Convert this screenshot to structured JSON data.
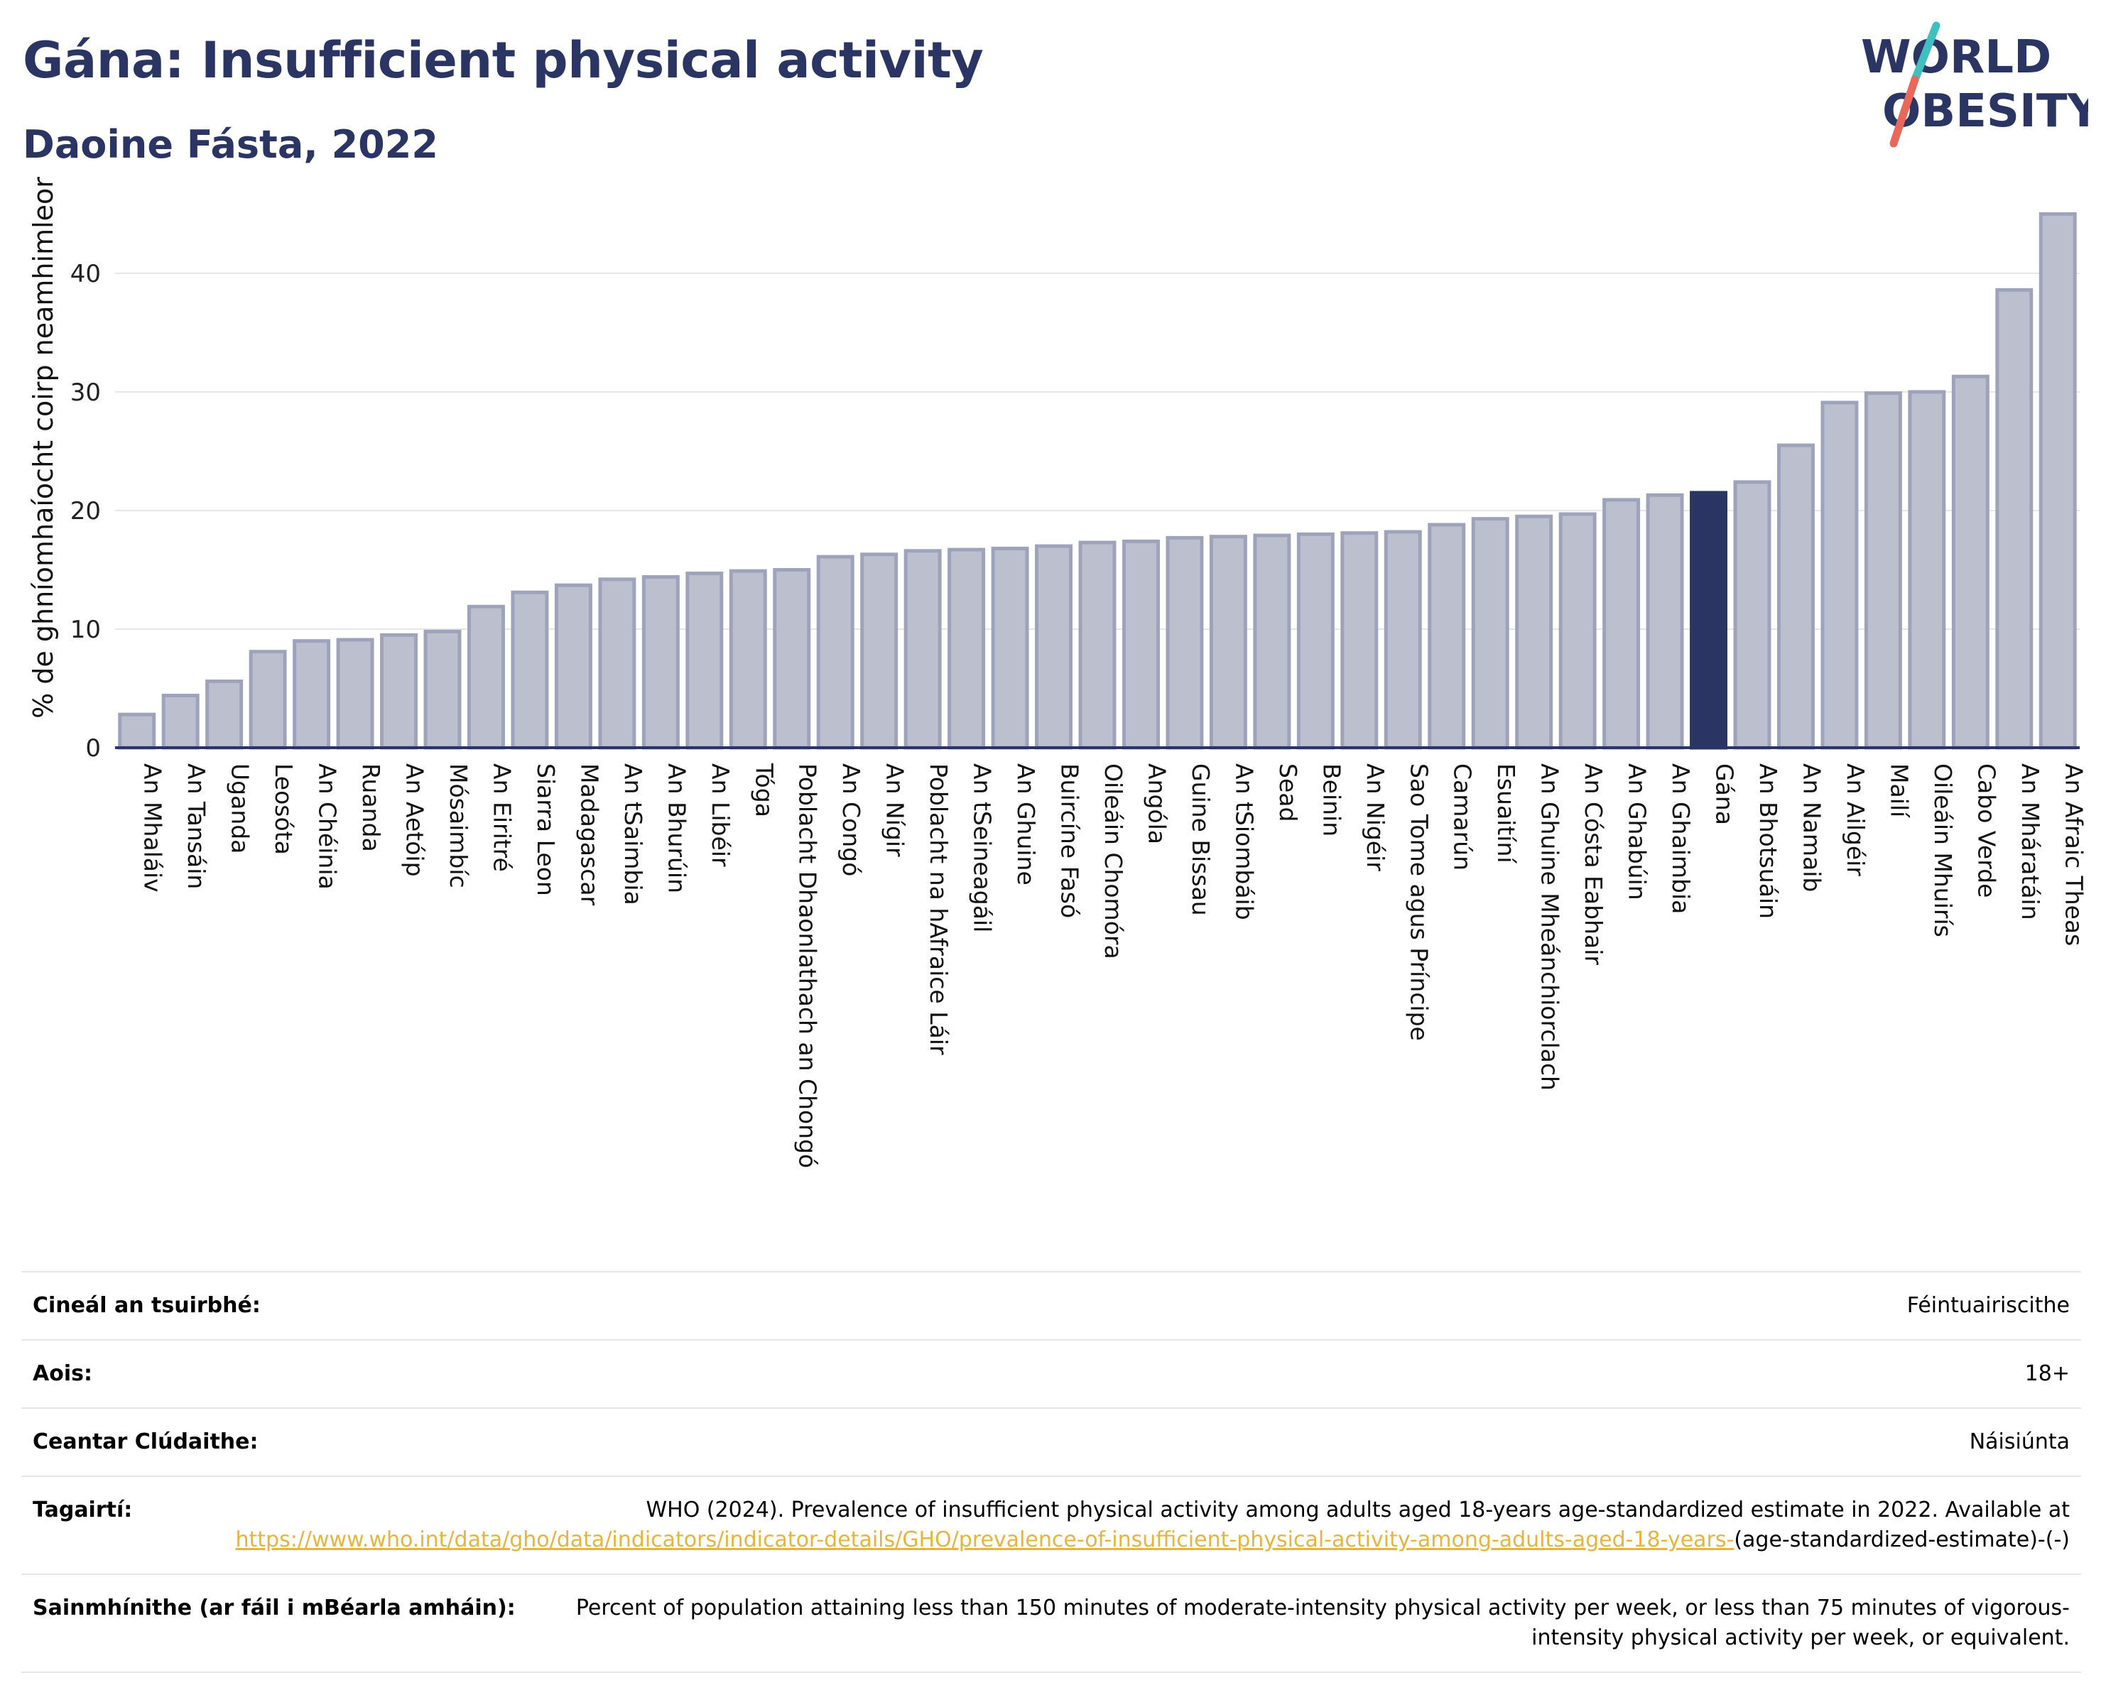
{
  "header": {
    "title": "Gána: Insufficient physical activity",
    "subtitle": "Daoine Fásta, 2022"
  },
  "logo": {
    "line1": "WORLD",
    "line2": "OBESITY"
  },
  "colors": {
    "title": "#2b3563",
    "bar_fill": "#bcc0ce",
    "bar_stroke": "#9ea3bb",
    "highlight_fill": "#2b3563",
    "axis": "#2b3563",
    "grid": "#e6e6e6",
    "link": "#e8b53c",
    "logo_slash_teal": "#3fbfbf",
    "logo_slash_red": "#e8685a"
  },
  "chart_data": {
    "type": "bar",
    "ylabel": "% de ghníomhaíocht coirp neamhimleor",
    "xlabel": "",
    "ylim": [
      0,
      47
    ],
    "yticks": [
      0,
      10,
      20,
      30,
      40
    ],
    "grid": true,
    "highlight": "Gána",
    "categories": [
      "An Mhaláiv",
      "An Tansáin",
      "Uganda",
      "Leosóta",
      "An Chéinia",
      "Ruanda",
      "An Aetóip",
      "Mósaimbíc",
      "An Eiritré",
      "Siarra Leon",
      "Madagascar",
      "An tSaimbia",
      "An Bhurúin",
      "An Libéir",
      "Tóga",
      "Poblacht Dhaonlathach an Chongó",
      "An Congó",
      "An Nígir",
      "Poblacht na hAfraice Láir",
      "An tSeineagáil",
      "An Ghuine",
      "Buircíne Fasó",
      "Oileáin Chomóra",
      "Angóla",
      "Guine Bissau",
      "An tSiombáib",
      "Sead",
      "Beinin",
      "An Nigéir",
      "Sao Tome agus Príncipe",
      "Camarún",
      "Esuaitíní",
      "An Ghuine Mheánchiorclach",
      "An Cósta Eabhair",
      "An Ghabúin",
      "An Ghaimbia",
      "Gána",
      "An Bhotsuáin",
      "An Namaib",
      "An Ailgéir",
      "Mailí",
      "Oileáin Mhuirís",
      "Cabo Verde",
      "An Mháratáin",
      "An Afraic Theas"
    ],
    "values": [
      2.8,
      4.4,
      5.6,
      8.1,
      9.0,
      9.1,
      9.5,
      9.8,
      11.9,
      13.1,
      13.7,
      14.2,
      14.4,
      14.7,
      14.9,
      15.0,
      16.1,
      16.3,
      16.6,
      16.7,
      16.8,
      17.0,
      17.3,
      17.4,
      17.7,
      17.8,
      17.9,
      18.0,
      18.1,
      18.2,
      18.8,
      19.3,
      19.5,
      19.7,
      20.9,
      21.3,
      21.5,
      22.4,
      25.5,
      29.1,
      29.9,
      30.0,
      31.3,
      38.6,
      45.0
    ]
  },
  "meta": {
    "survey_type_label": "Cineál an tsuirbhé:",
    "survey_type_value": "Féintuairiscithe",
    "age_label": "Aois:",
    "age_value": "18+",
    "coverage_label": "Ceantar Clúdaithe:",
    "coverage_value": "Náisiúnta",
    "references_label": "Tagairtí:",
    "references_text": "WHO (2024). Prevalence of insufficient physical activity among adults aged 18-years age-standardized estimate in 2022. Available at",
    "references_link": "https://www.who.int/data/gho/data/indicators/indicator-details/GHO/prevalence-of-insufficient-physical-activity-among-adults-aged-18-years-",
    "references_suffix": "(age-standardized-estimate)-(-)",
    "definitions_label": "Sainmhínithe (ar fáil i mBéarla amháin):",
    "definitions_value": "Percent of population attaining less than 150 minutes of moderate-intensity physical activity per week, or less than 75 minutes of vigorous-intensity physical activity per week, or equivalent."
  }
}
